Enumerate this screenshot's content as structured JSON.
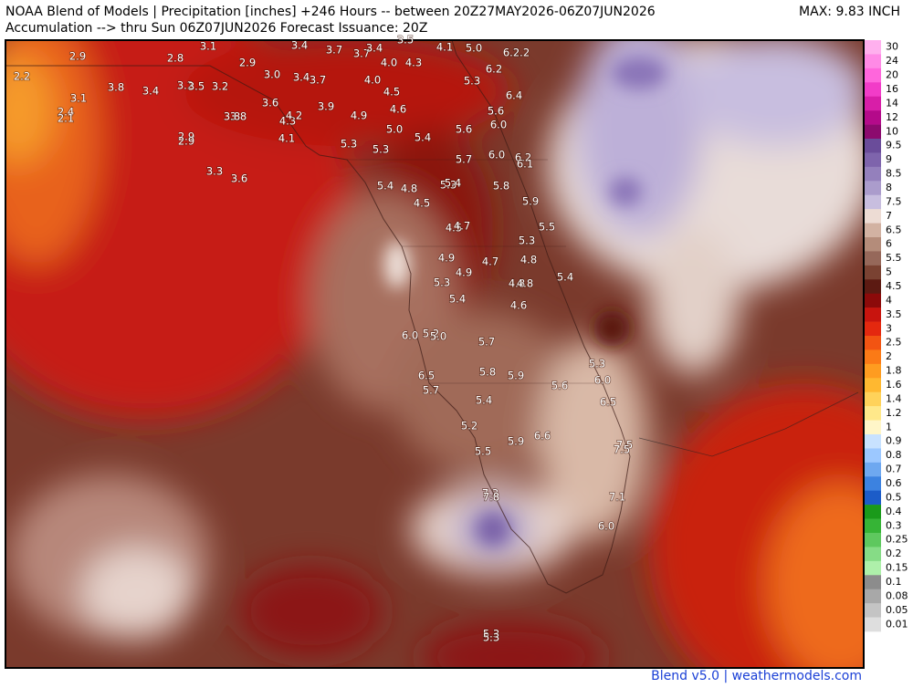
{
  "header": {
    "line1": "NOAA Blend of Models | Precipitation [inches] +246 Hours -- between 20Z27MAY2026-06Z07JUN2026",
    "line2": "Accumulation --> thru Sun 06Z07JUN2026   Forecast Issuance: 20Z",
    "max": "MAX: 9.83 INCH"
  },
  "colorbar": {
    "labels": [
      "30",
      "24",
      "20",
      "16",
      "14",
      "12",
      "10",
      "9.5",
      "9",
      "8.5",
      "8",
      "7.5",
      "7",
      "6.5",
      "6",
      "5.5",
      "5",
      "4.5",
      "4",
      "3.5",
      "3",
      "2.5",
      "2",
      "1.8",
      "1.6",
      "1.4",
      "1.2",
      "1",
      "0.9",
      "0.8",
      "0.7",
      "0.6",
      "0.5",
      "0.4",
      "0.3",
      "0.25",
      "0.2",
      "0.15",
      "0.1",
      "0.08",
      "0.05",
      "0.01"
    ]
  },
  "stations": [
    "2.9",
    "2.8",
    "2.9",
    "3.1",
    "3.4",
    "3.7",
    "3.7",
    "3.4",
    "3.5",
    "4.1",
    "5.0",
    "6.2",
    "2.2",
    "2.2",
    "3.8",
    "3.4",
    "3.2",
    "3.5",
    "3.2",
    "3.0",
    "3.4",
    "3.7",
    "4.0",
    "4.0",
    "4.3",
    "5.3",
    "6.2",
    "3.1",
    "2.4",
    "2.1",
    "3.6",
    "3.9",
    "4.5",
    "6.4",
    "3.8",
    "3.8",
    "4.3",
    "4.2",
    "4.9",
    "4.6",
    "5.6",
    "6.0",
    "2.9",
    "2.9",
    "4.1",
    "5.3",
    "5.3",
    "5.0",
    "5.4",
    "5.6",
    "5.7",
    "6.0",
    "6.2",
    "6.1",
    "3.3",
    "3.6",
    "5.4",
    "4.8",
    "5.3",
    "5.4",
    "5.8",
    "5.9",
    "4.5",
    "4.5",
    "4.7",
    "5.5",
    "5.3",
    "4.9",
    "4.7",
    "4.8",
    "5.4",
    "4.9",
    "5.3",
    "4.8",
    "4.8",
    "5.4",
    "4.6",
    "6.0",
    "5.2",
    "5.0",
    "5.7",
    "5.3",
    "5.8",
    "5.9",
    "6.0",
    "6.5",
    "5.7",
    "5.6",
    "5.4",
    "6.5",
    "5.2",
    "6.6",
    "5.9",
    "7.5",
    "7.5",
    "5.5",
    "7.3",
    "7.8",
    "7.1",
    "6.0",
    "5.3",
    "5.3"
  ],
  "footer": "Blend v5.0 | weathermodels.com"
}
